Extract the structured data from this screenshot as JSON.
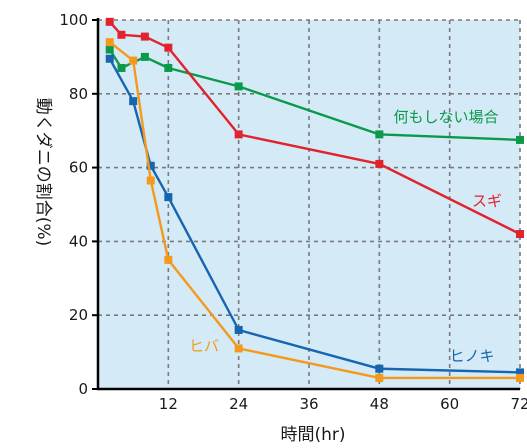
{
  "chart_data": {
    "type": "line",
    "title": "",
    "xlabel": "時間(hr)",
    "ylabel": "動くダニの割合(%)",
    "xlim": [
      0,
      72
    ],
    "ylim": [
      0,
      100
    ],
    "x_ticks": [
      "12",
      "24",
      "36",
      "48",
      "60",
      "72"
    ],
    "y_ticks": [
      "0",
      "20",
      "40",
      "60",
      "80",
      "100"
    ],
    "grid": "dashed",
    "background_color": "#d4eaf7",
    "series": [
      {
        "name": "何もしない場合",
        "color": "#0a9a4a",
        "points": [
          [
            2,
            92
          ],
          [
            4,
            87
          ],
          [
            8,
            90
          ],
          [
            12,
            87
          ],
          [
            24,
            82
          ],
          [
            48,
            69
          ],
          [
            72,
            67.5
          ]
        ]
      },
      {
        "name": "スギ",
        "color": "#e0232c",
        "points": [
          [
            2,
            99.5
          ],
          [
            4,
            96
          ],
          [
            8,
            95.5
          ],
          [
            12,
            92.5
          ],
          [
            24,
            69
          ],
          [
            48,
            61
          ],
          [
            72,
            42
          ]
        ]
      },
      {
        "name": "ヒノキ",
        "color": "#1565b0",
        "points": [
          [
            2,
            89.5
          ],
          [
            6,
            78
          ],
          [
            9,
            60.5
          ],
          [
            12,
            52
          ],
          [
            24,
            16
          ],
          [
            48,
            5.5
          ],
          [
            72,
            4.5
          ]
        ]
      },
      {
        "name": "ヒバ",
        "color": "#f39a1d",
        "points": [
          [
            2,
            94
          ],
          [
            6,
            89
          ],
          [
            9,
            56.5
          ],
          [
            12,
            35
          ],
          [
            24,
            11
          ],
          [
            48,
            3
          ],
          [
            72,
            3
          ]
        ]
      }
    ]
  }
}
